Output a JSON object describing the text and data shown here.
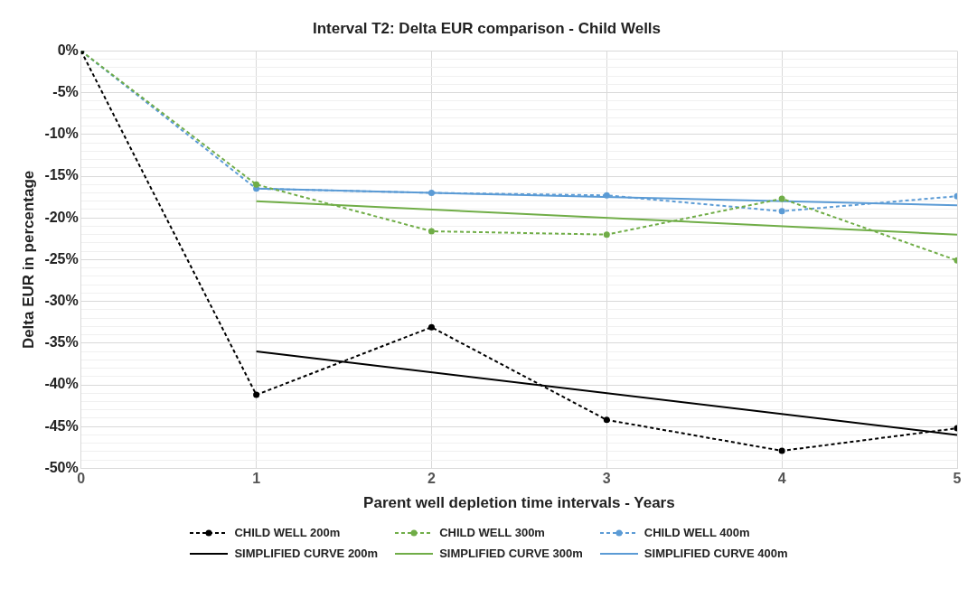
{
  "chart_data": {
    "type": "line",
    "title": "Interval T2: Delta EUR comparison - Child Wells",
    "xlabel": "Parent well depletion time intervals - Years",
    "ylabel": "Delta EUR in percentage",
    "xlim": [
      0,
      5
    ],
    "xticks": [
      0,
      1,
      2,
      3,
      4,
      5
    ],
    "ylim": [
      -50,
      0
    ],
    "yticks": [
      {
        "value": 0,
        "label": "0%"
      },
      {
        "value": -1,
        "label": null
      },
      {
        "value": -2,
        "label": null
      },
      {
        "value": -3,
        "label": null
      },
      {
        "value": -4,
        "label": null
      },
      {
        "value": -5,
        "label": "-5%"
      },
      {
        "value": -6,
        "label": null
      },
      {
        "value": -7,
        "label": null
      },
      {
        "value": -8,
        "label": null
      },
      {
        "value": -9,
        "label": null
      },
      {
        "value": -10,
        "label": "-10%"
      },
      {
        "value": -11,
        "label": null
      },
      {
        "value": -12,
        "label": null
      },
      {
        "value": -13,
        "label": null
      },
      {
        "value": -14,
        "label": null
      },
      {
        "value": -15,
        "label": "-15%"
      },
      {
        "value": -16,
        "label": null
      },
      {
        "value": -17,
        "label": null
      },
      {
        "value": -18,
        "label": null
      },
      {
        "value": -19,
        "label": null
      },
      {
        "value": -20,
        "label": "-20%"
      },
      {
        "value": -21,
        "label": null
      },
      {
        "value": -22,
        "label": null
      },
      {
        "value": -23,
        "label": null
      },
      {
        "value": -24,
        "label": null
      },
      {
        "value": -25,
        "label": "-25%"
      },
      {
        "value": -26,
        "label": null
      },
      {
        "value": -27,
        "label": null
      },
      {
        "value": -28,
        "label": null
      },
      {
        "value": -29,
        "label": null
      },
      {
        "value": -30,
        "label": "-30%"
      },
      {
        "value": -31,
        "label": null
      },
      {
        "value": -32,
        "label": null
      },
      {
        "value": -33,
        "label": null
      },
      {
        "value": -34,
        "label": null
      },
      {
        "value": -35,
        "label": "-35%"
      },
      {
        "value": -36,
        "label": null
      },
      {
        "value": -37,
        "label": null
      },
      {
        "value": -38,
        "label": null
      },
      {
        "value": -39,
        "label": null
      },
      {
        "value": -40,
        "label": "-40%"
      },
      {
        "value": -41,
        "label": null
      },
      {
        "value": -42,
        "label": null
      },
      {
        "value": -43,
        "label": null
      },
      {
        "value": -44,
        "label": null
      },
      {
        "value": -45,
        "label": "-45%"
      },
      {
        "value": -46,
        "label": null
      },
      {
        "value": -47,
        "label": null
      },
      {
        "value": -48,
        "label": null
      },
      {
        "value": -49,
        "label": null
      },
      {
        "value": -50,
        "label": "-50%"
      }
    ],
    "grid": true,
    "legend": "bottom",
    "series": [
      {
        "name": "CHILD WELL 200m",
        "color": "#000000",
        "line_style": "dashed",
        "marker": "circle",
        "x": [
          0,
          1,
          2,
          3,
          4,
          5
        ],
        "values": [
          0,
          -41.2,
          -33.1,
          -44.2,
          -47.9,
          -45.2
        ]
      },
      {
        "name": "CHILD WELL 300m",
        "color": "#70ad47",
        "line_style": "dashed",
        "marker": "circle",
        "x": [
          0,
          1,
          2,
          3,
          4,
          5
        ],
        "values": [
          0,
          -16,
          -21.6,
          -22,
          -17.7,
          -25.1
        ]
      },
      {
        "name": "CHILD WELL 400m",
        "color": "#5b9bd5",
        "line_style": "dashed",
        "marker": "circle",
        "x": [
          0,
          1,
          2,
          3,
          4,
          5
        ],
        "values": [
          0,
          -16.5,
          -17,
          -17.3,
          -19.2,
          -17.4
        ]
      },
      {
        "name": "SIMPLIFIED CURVE 200m",
        "color": "#000000",
        "line_style": "solid",
        "marker": "none",
        "x": [
          1,
          5
        ],
        "values": [
          -36,
          -46
        ]
      },
      {
        "name": "SIMPLIFIED CURVE 300m",
        "color": "#70ad47",
        "line_style": "solid",
        "marker": "none",
        "x": [
          1,
          5
        ],
        "values": [
          -18,
          -22
        ]
      },
      {
        "name": "SIMPLIFIED CURVE 400m",
        "color": "#5b9bd5",
        "line_style": "solid",
        "marker": "none",
        "x": [
          1,
          5
        ],
        "values": [
          -16.5,
          -18.5
        ]
      }
    ]
  }
}
